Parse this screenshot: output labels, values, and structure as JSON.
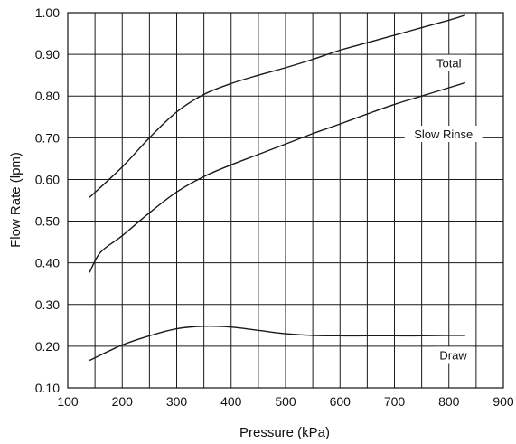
{
  "chart_data": {
    "type": "line",
    "title": "",
    "xlabel": "Pressure (kPa)",
    "ylabel": "Flow Rate (lpm)",
    "xlim": [
      100,
      900
    ],
    "ylim": [
      0.1,
      1.0
    ],
    "xticks": [
      "100",
      "200",
      "300",
      "400",
      "500",
      "600",
      "700",
      "800",
      "900"
    ],
    "yticks": [
      "0.10",
      "0.20",
      "0.30",
      "0.40",
      "0.50",
      "0.60",
      "0.70",
      "0.80",
      "0.90",
      "1.00"
    ],
    "grid": "vertical lines every 50 kPa, horizontal lines every 0.10 lpm",
    "legend": "none (series labelled inline at right)",
    "line_color": "#1a1a1a",
    "series": [
      {
        "name": "Total",
        "x": [
          140,
          200,
          250,
          300,
          350,
          400,
          450,
          500,
          550,
          600,
          650,
          700,
          750,
          800,
          830
        ],
        "y": [
          0.557,
          0.63,
          0.7,
          0.762,
          0.804,
          0.83,
          0.85,
          0.868,
          0.888,
          0.91,
          0.928,
          0.946,
          0.964,
          0.982,
          0.994
        ]
      },
      {
        "name": "Slow Rinse",
        "x": [
          140,
          160,
          200,
          250,
          300,
          350,
          400,
          450,
          500,
          550,
          600,
          650,
          700,
          750,
          800,
          830
        ],
        "y": [
          0.377,
          0.425,
          0.465,
          0.52,
          0.57,
          0.607,
          0.635,
          0.66,
          0.685,
          0.71,
          0.733,
          0.757,
          0.78,
          0.8,
          0.82,
          0.832
        ]
      },
      {
        "name": "Draw",
        "x": [
          140,
          200,
          250,
          300,
          350,
          400,
          450,
          500,
          550,
          600,
          650,
          700,
          750,
          800,
          830
        ],
        "y": [
          0.166,
          0.203,
          0.225,
          0.242,
          0.248,
          0.246,
          0.238,
          0.23,
          0.226,
          0.225,
          0.225,
          0.225,
          0.225,
          0.226,
          0.226
        ]
      }
    ]
  }
}
